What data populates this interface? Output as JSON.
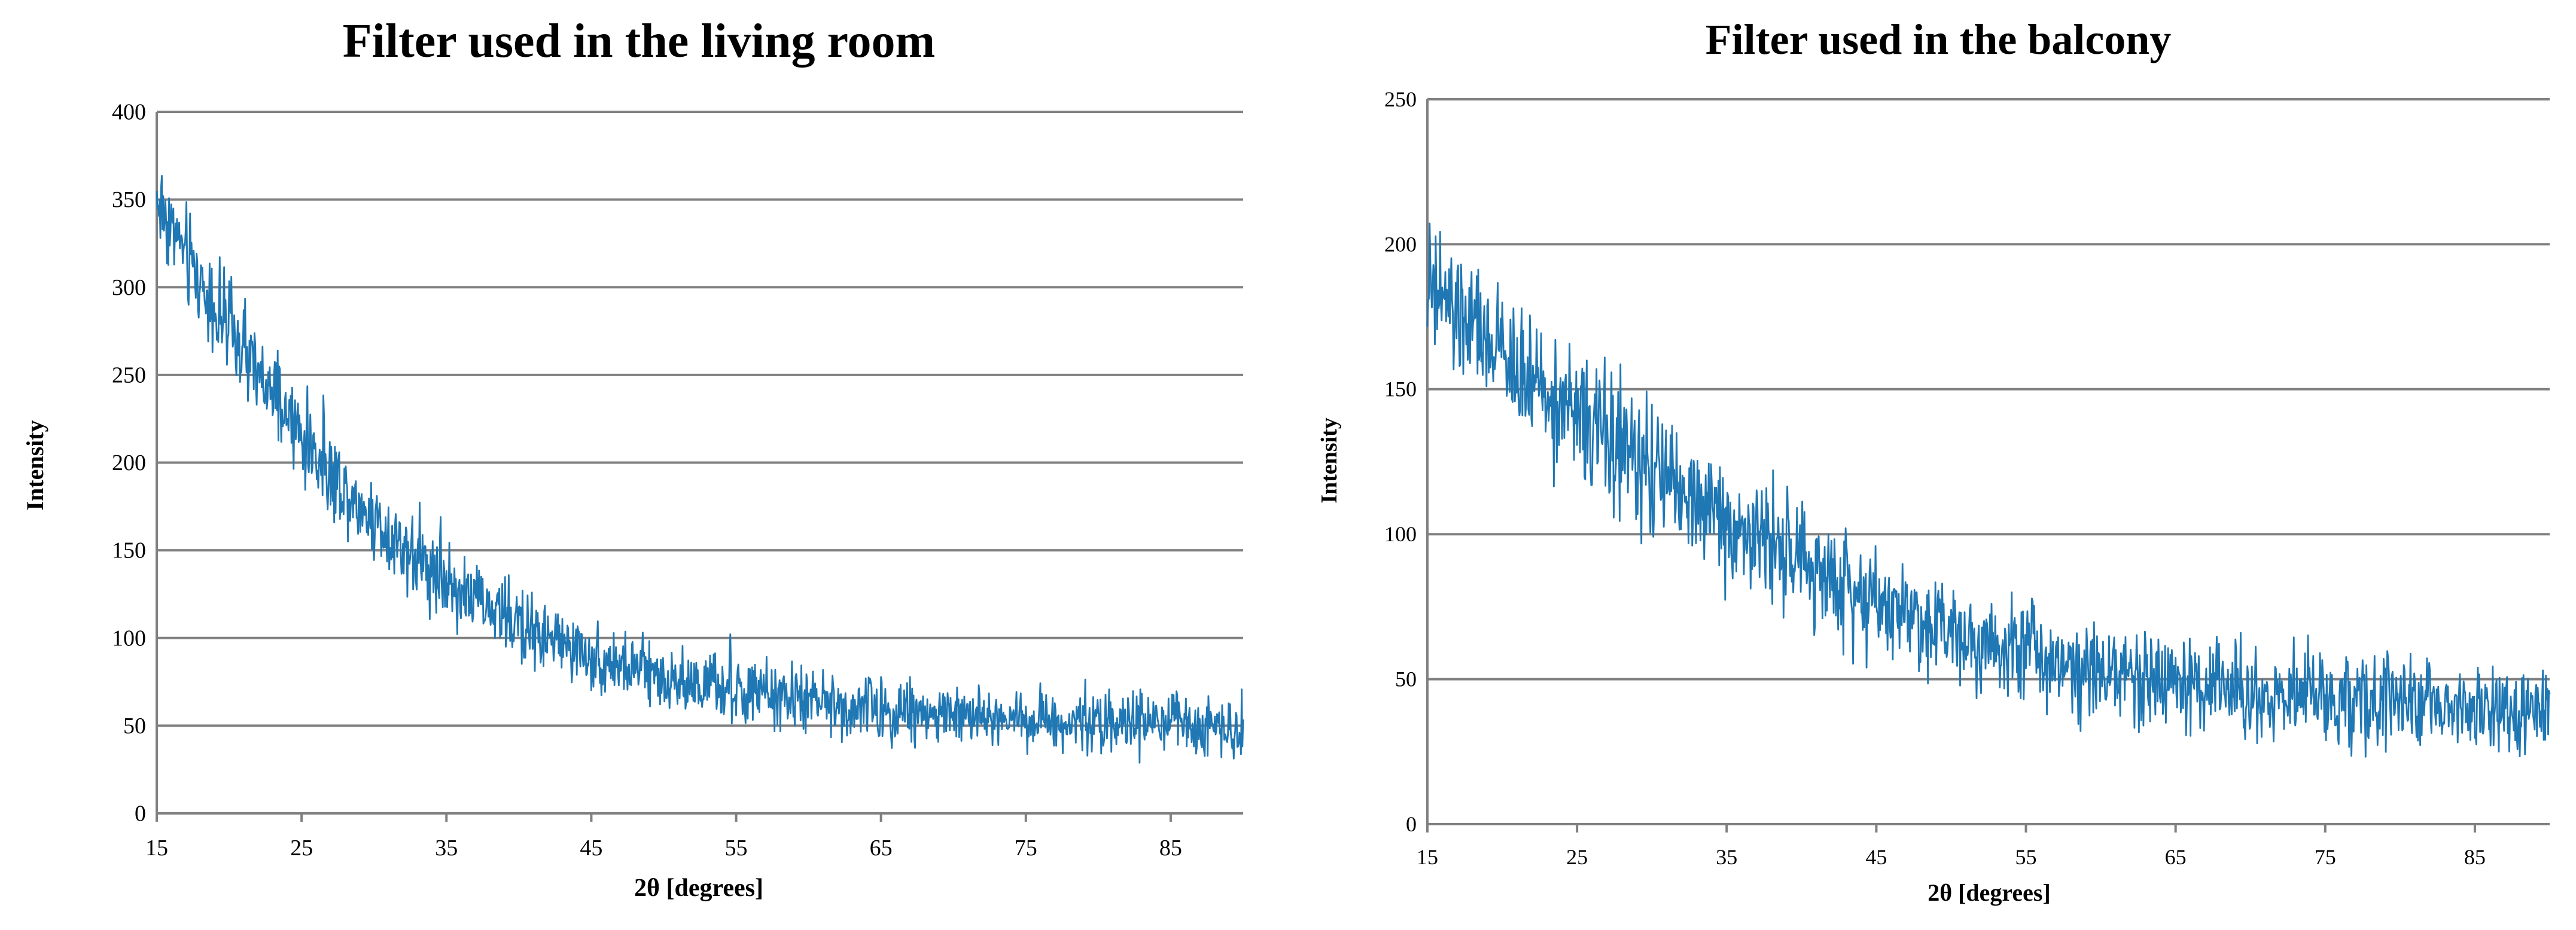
{
  "chart_data": [
    {
      "type": "line",
      "title": "Filter used in the living room",
      "xlabel": "2θ [degrees]",
      "ylabel": "Intensity",
      "xlim": [
        15,
        90
      ],
      "ylim": [
        0,
        400
      ],
      "xticks": [
        15,
        25,
        35,
        45,
        55,
        65,
        75,
        85
      ],
      "yticks": [
        0,
        50,
        100,
        150,
        200,
        250,
        300,
        350,
        400
      ],
      "grid": true,
      "color": "#1f77b4",
      "series": [
        {
          "x": [
            15,
            16,
            17,
            18,
            19,
            20,
            21,
            22,
            23,
            24,
            25,
            26,
            27,
            28,
            29,
            30,
            31,
            32,
            33,
            34,
            35,
            36,
            37,
            38,
            39,
            40,
            41,
            42,
            43,
            44,
            45,
            46,
            47,
            48,
            49,
            50,
            51,
            52,
            53,
            54,
            55,
            56,
            57,
            58,
            59,
            60,
            61,
            62,
            63,
            64,
            65,
            66,
            67,
            68,
            69,
            70,
            71,
            72,
            73,
            74,
            75,
            76,
            77,
            78,
            79,
            80,
            81,
            82,
            83,
            84,
            85,
            86,
            87,
            88,
            89,
            90
          ],
          "values": [
            350,
            335,
            318,
            303,
            289,
            275,
            262,
            249,
            237,
            226,
            215,
            204,
            194,
            185,
            176,
            168,
            160,
            153,
            146,
            139,
            133,
            127,
            122,
            117,
            112,
            108,
            104,
            100,
            96,
            93,
            90,
            87,
            84,
            82,
            80,
            78,
            76,
            74,
            72,
            71,
            69,
            68,
            67,
            66,
            65,
            64,
            63,
            62,
            61,
            60,
            59,
            58,
            58,
            57,
            57,
            56,
            56,
            55,
            55,
            54,
            54,
            54,
            53,
            53,
            53,
            52,
            52,
            52,
            52,
            51,
            51,
            51,
            51,
            50,
            50,
            50
          ],
          "noise": 32
        }
      ]
    },
    {
      "type": "line",
      "title": "Filter used in the balcony",
      "xlabel": "2θ [degrees]",
      "ylabel": "Intensity",
      "xlim": [
        15,
        90
      ],
      "ylim": [
        0,
        250
      ],
      "xticks": [
        15,
        25,
        35,
        45,
        55,
        65,
        75,
        85
      ],
      "yticks": [
        0,
        50,
        100,
        150,
        200,
        250
      ],
      "grid": true,
      "color": "#1f77b4",
      "series": [
        {
          "x": [
            15,
            16,
            17,
            18,
            19,
            20,
            21,
            22,
            23,
            24,
            25,
            26,
            27,
            28,
            29,
            30,
            31,
            32,
            33,
            34,
            35,
            36,
            37,
            38,
            39,
            40,
            41,
            42,
            43,
            44,
            45,
            46,
            47,
            48,
            49,
            50,
            51,
            52,
            53,
            54,
            55,
            56,
            57,
            58,
            59,
            60,
            61,
            62,
            63,
            64,
            65,
            66,
            67,
            68,
            69,
            70,
            71,
            72,
            73,
            74,
            75,
            76,
            77,
            78,
            79,
            80,
            81,
            82,
            83,
            84,
            85,
            86,
            87,
            88,
            89,
            90
          ],
          "values": [
            185,
            180,
            175,
            170,
            166,
            162,
            157,
            153,
            149,
            145,
            141,
            137,
            133,
            129,
            125,
            121,
            118,
            114,
            111,
            108,
            105,
            102,
            99,
            96,
            93,
            90,
            87,
            84,
            82,
            79,
            77,
            75,
            73,
            71,
            69,
            67,
            66,
            64,
            63,
            61,
            60,
            58,
            57,
            56,
            55,
            54,
            53,
            52,
            51,
            50,
            49,
            48,
            48,
            47,
            46,
            46,
            45,
            45,
            44,
            44,
            43,
            43,
            42,
            42,
            42,
            41,
            41,
            41,
            40,
            40,
            40,
            39,
            39,
            39,
            38,
            38
          ],
          "noise": 26
        }
      ]
    }
  ]
}
